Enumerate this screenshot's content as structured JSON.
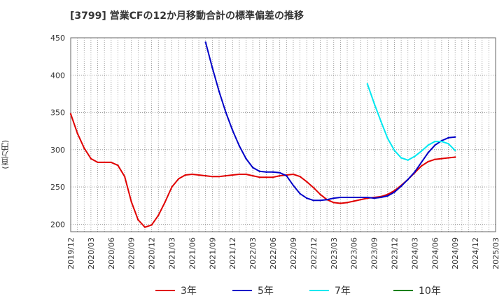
{
  "title": "[3799]  営業CFの12か月移動合計の標準偏差の推移",
  "y_unit_label": "(百万円)",
  "chart_data": {
    "type": "line",
    "title": "[3799]  営業CFの12か月移動合計の標準偏差の推移",
    "ylabel": "(百万円)",
    "xlabel": "",
    "ylim": [
      190,
      450
    ],
    "yticks": [
      200,
      250,
      300,
      350,
      400,
      450
    ],
    "xlim": [
      "2019/12",
      "2025/03"
    ],
    "xticks": [
      "2019/12",
      "2020/03",
      "2020/06",
      "2020/09",
      "2020/12",
      "2021/03",
      "2021/06",
      "2021/09",
      "2021/12",
      "2022/03",
      "2022/06",
      "2022/09",
      "2022/12",
      "2023/03",
      "2023/06",
      "2023/09",
      "2023/12",
      "2024/03",
      "2024/06",
      "2024/09",
      "2024/12",
      "2025/03"
    ],
    "grid": true,
    "legend_position": "bottom",
    "series": [
      {
        "name": "3年",
        "color": "#e00000",
        "x": [
          "2019/12",
          "2020/01",
          "2020/02",
          "2020/03",
          "2020/04",
          "2020/05",
          "2020/06",
          "2020/07",
          "2020/08",
          "2020/09",
          "2020/10",
          "2020/11",
          "2020/12",
          "2021/01",
          "2021/02",
          "2021/03",
          "2021/04",
          "2021/05",
          "2021/06",
          "2021/07",
          "2021/08",
          "2021/09",
          "2021/10",
          "2021/11",
          "2021/12",
          "2022/01",
          "2022/02",
          "2022/03",
          "2022/04",
          "2022/05",
          "2022/06",
          "2022/07",
          "2022/08",
          "2022/09",
          "2022/10",
          "2022/11",
          "2022/12",
          "2023/01",
          "2023/02",
          "2023/03",
          "2023/04",
          "2023/05",
          "2023/06",
          "2023/07",
          "2023/08",
          "2023/09",
          "2023/10",
          "2023/11",
          "2023/12",
          "2024/01",
          "2024/02",
          "2024/03",
          "2024/04",
          "2024/05",
          "2024/06",
          "2024/07",
          "2024/08",
          "2024/09"
        ],
        "values": [
          348,
          322,
          302,
          288,
          283,
          283,
          283,
          279,
          264,
          230,
          206,
          196,
          199,
          212,
          230,
          250,
          261,
          266,
          267,
          266,
          265,
          264,
          264,
          265,
          266,
          267,
          267,
          265,
          263,
          263,
          263,
          265,
          266,
          267,
          264,
          257,
          249,
          240,
          233,
          229,
          228,
          229,
          231,
          233,
          235,
          236,
          237,
          240,
          245,
          252,
          260,
          269,
          278,
          284,
          287,
          288,
          289,
          290
        ]
      },
      {
        "name": "5年",
        "color": "#0000c8",
        "x": [
          "2021/08",
          "2021/09",
          "2021/10",
          "2021/11",
          "2021/12",
          "2022/01",
          "2022/02",
          "2022/03",
          "2022/04",
          "2022/05",
          "2022/06",
          "2022/07",
          "2022/08",
          "2022/09",
          "2022/10",
          "2022/11",
          "2022/12",
          "2023/01",
          "2023/02",
          "2023/03",
          "2023/04",
          "2023/05",
          "2023/06",
          "2023/07",
          "2023/08",
          "2023/09",
          "2023/10",
          "2023/11",
          "2023/12",
          "2024/01",
          "2024/02",
          "2024/03",
          "2024/04",
          "2024/05",
          "2024/06",
          "2024/07",
          "2024/08",
          "2024/09"
        ],
        "values": [
          444,
          410,
          378,
          350,
          326,
          305,
          288,
          276,
          271,
          270,
          270,
          269,
          265,
          252,
          241,
          235,
          232,
          232,
          233,
          235,
          236,
          236,
          236,
          236,
          236,
          235,
          236,
          238,
          243,
          251,
          260,
          270,
          283,
          296,
          306,
          312,
          316,
          317
        ]
      },
      {
        "name": "7年",
        "color": "#00e8f0",
        "x": [
          "2023/08",
          "2023/09",
          "2023/10",
          "2023/11",
          "2023/12",
          "2024/01",
          "2024/02",
          "2024/03",
          "2024/04",
          "2024/05",
          "2024/06",
          "2024/07",
          "2024/08",
          "2024/09"
        ],
        "values": [
          388,
          362,
          338,
          315,
          299,
          289,
          286,
          291,
          298,
          306,
          311,
          311,
          308,
          299
        ]
      },
      {
        "name": "10年",
        "color": "#008000",
        "x": [],
        "values": []
      }
    ]
  }
}
